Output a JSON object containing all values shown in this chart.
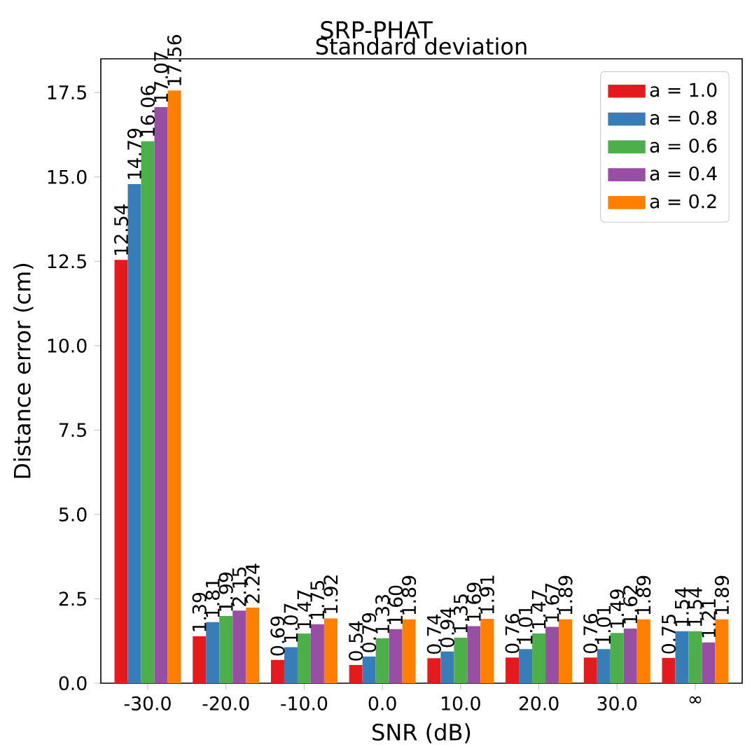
{
  "chart_data": {
    "type": "bar",
    "title": "SRP-PHAT",
    "subtitle": "Standard deviation",
    "xlabel": "SNR (dB)",
    "ylabel": "Distance error (cm)",
    "categories": [
      "-30.0",
      "-20.0",
      "-10.0",
      "0.0",
      "10.0",
      "20.0",
      "30.0",
      "∞"
    ],
    "series": [
      {
        "name": "a = 1.0",
        "color": "#e41a1c",
        "values": [
          12.54,
          1.39,
          0.69,
          0.54,
          0.74,
          0.76,
          0.76,
          0.75
        ],
        "value_labels": [
          "12.54",
          "1.39",
          "0.69",
          "0.54",
          "0.74",
          "0.76",
          "0.76",
          "0.75"
        ]
      },
      {
        "name": "a = 0.8",
        "color": "#377eb8",
        "values": [
          14.79,
          1.81,
          1.07,
          0.79,
          0.94,
          1.01,
          1.01,
          1.54
        ],
        "value_labels": [
          "14.79",
          "1.81",
          "1.07",
          "0.79",
          "0.94",
          "1.01",
          "1.01",
          "1.54"
        ]
      },
      {
        "name": "a = 0.6",
        "color": "#4daf4a",
        "values": [
          16.06,
          1.99,
          1.47,
          1.33,
          1.35,
          1.47,
          1.49,
          1.54
        ],
        "value_labels": [
          "16.06",
          "1.99",
          "1.47",
          "1.33",
          "1.35",
          "1.47",
          "1.49",
          "1.54"
        ]
      },
      {
        "name": "a = 0.4",
        "color": "#984ea3",
        "values": [
          17.07,
          2.15,
          1.75,
          1.6,
          1.69,
          1.67,
          1.62,
          1.21
        ],
        "value_labels": [
          "17.07",
          "2.15",
          "1.75",
          "1.60",
          "1.69",
          "1.67",
          "1.62",
          "1.21"
        ]
      },
      {
        "name": "a = 0.2",
        "color": "#ff7f00",
        "values": [
          17.56,
          2.24,
          1.92,
          1.89,
          1.91,
          1.89,
          1.89,
          1.89
        ],
        "value_labels": [
          "17.56",
          "2.24",
          "1.92",
          "1.89",
          "1.91",
          "1.89",
          "1.89",
          "1.89"
        ]
      }
    ],
    "ylim": [
      0,
      18.5
    ],
    "yticks": [
      {
        "value": 0,
        "label": "0.0"
      },
      2.5,
      {
        "value": 5,
        "label": "5.0"
      },
      7.5,
      {
        "value": 10,
        "label": "10.0"
      },
      12.5,
      {
        "value": 15,
        "label": "15.0"
      },
      17.5
    ],
    "legend": "top right",
    "grid": false
  }
}
